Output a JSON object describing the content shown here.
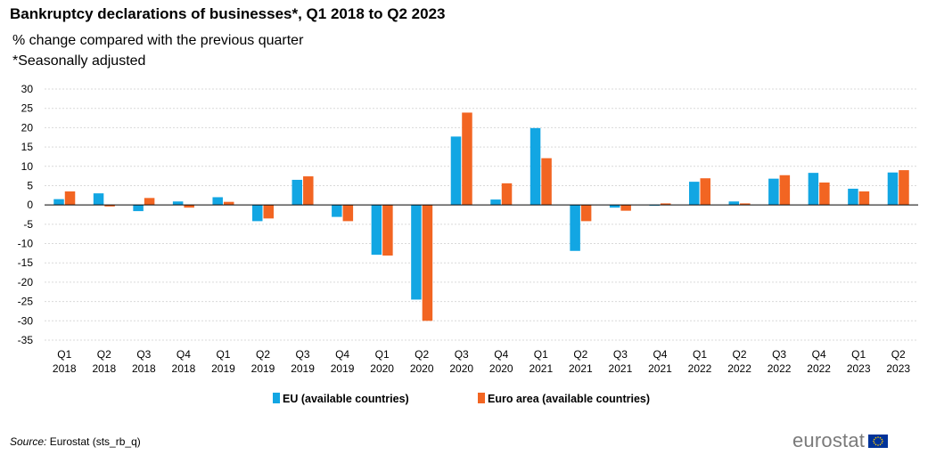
{
  "title": "Bankruptcy declarations of businesses*, Q1 2018 to Q2 2023",
  "subtitle": "% change compared with the previous quarter",
  "note": "*Seasonally adjusted",
  "source_label": "Source:",
  "source_text": "Eurostat (sts_rb_q)",
  "logo_text": "eurostat",
  "colors": {
    "eu": "#12A6E3",
    "euro_area": "#F26522",
    "grid": "#d9d9d9",
    "axis": "#000000"
  },
  "chart_data": {
    "type": "bar",
    "categories": [
      [
        "Q1",
        "2018"
      ],
      [
        "Q2",
        "2018"
      ],
      [
        "Q3",
        "2018"
      ],
      [
        "Q4",
        "2018"
      ],
      [
        "Q1",
        "2019"
      ],
      [
        "Q2",
        "2019"
      ],
      [
        "Q3",
        "2019"
      ],
      [
        "Q4",
        "2019"
      ],
      [
        "Q1",
        "2020"
      ],
      [
        "Q2",
        "2020"
      ],
      [
        "Q3",
        "2020"
      ],
      [
        "Q4",
        "2020"
      ],
      [
        "Q1",
        "2021"
      ],
      [
        "Q2",
        "2021"
      ],
      [
        "Q3",
        "2021"
      ],
      [
        "Q4",
        "2021"
      ],
      [
        "Q1",
        "2022"
      ],
      [
        "Q2",
        "2022"
      ],
      [
        "Q3",
        "2022"
      ],
      [
        "Q4",
        "2022"
      ],
      [
        "Q1",
        "2023"
      ],
      [
        "Q2",
        "2023"
      ]
    ],
    "series": [
      {
        "name": "EU (available countries)",
        "values": [
          1.5,
          3.0,
          -1.6,
          0.9,
          2.0,
          -4.2,
          6.5,
          -3.1,
          -12.9,
          -24.5,
          17.7,
          1.4,
          19.9,
          -11.9,
          -0.7,
          -0.2,
          6.0,
          0.9,
          6.8,
          8.3,
          4.2,
          8.4
        ]
      },
      {
        "name": "Euro area (available countries)",
        "values": [
          3.5,
          -0.4,
          1.8,
          -0.7,
          0.8,
          -3.5,
          7.4,
          -4.2,
          -13.1,
          -30.0,
          23.9,
          5.6,
          12.1,
          -4.2,
          -1.5,
          0.4,
          6.9,
          0.4,
          7.7,
          5.8,
          3.5,
          9.0
        ]
      }
    ],
    "ylim": [
      -35,
      30
    ],
    "yticks": [
      30,
      25,
      20,
      15,
      10,
      5,
      0,
      -5,
      -10,
      -15,
      -20,
      -25,
      -30,
      -35
    ],
    "grid": true,
    "legend": "bottom-center"
  }
}
